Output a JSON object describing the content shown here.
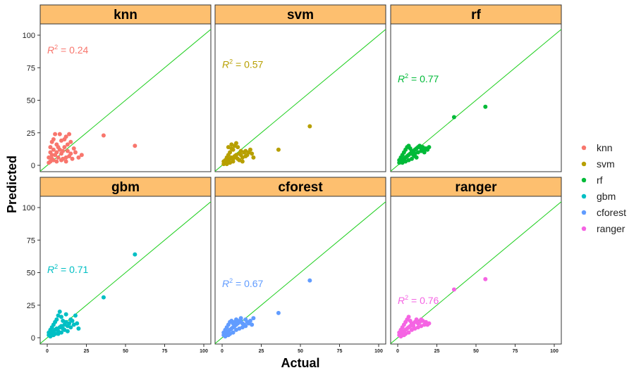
{
  "chart_data": {
    "type": "scatter",
    "xlabel": "Actual",
    "ylabel": "Predicted",
    "xlim": [
      0,
      100
    ],
    "ylim": [
      0,
      100
    ],
    "x_ticks": [
      0,
      25,
      50,
      75,
      100
    ],
    "y_ticks": [
      0,
      25,
      50,
      75,
      100
    ],
    "reference_line": "y = x",
    "reference_line_color": "#1fcf1f",
    "strip_fill": "#fdbf6f",
    "legend_position": "right",
    "legend": [
      "knn",
      "svm",
      "rf",
      "gbm",
      "cforest",
      "ranger"
    ],
    "panels": [
      {
        "name": "knn",
        "color": "#F8766D",
        "r2_label": "R",
        "r2_sup": "2",
        "r2_value": "= 0.24",
        "r2_at": [
          0,
          88
        ],
        "points": [
          [
            1,
            2
          ],
          [
            2,
            3
          ],
          [
            3,
            5
          ],
          [
            4,
            4
          ],
          [
            5,
            8
          ],
          [
            6,
            10
          ],
          [
            7,
            6
          ],
          [
            8,
            12
          ],
          [
            9,
            9
          ],
          [
            10,
            5
          ],
          [
            11,
            14
          ],
          [
            12,
            6
          ],
          [
            13,
            11
          ],
          [
            14,
            7
          ],
          [
            15,
            9
          ],
          [
            16,
            5
          ],
          [
            17,
            13
          ],
          [
            18,
            10
          ],
          [
            20,
            6
          ],
          [
            2,
            14
          ],
          [
            3,
            18
          ],
          [
            4,
            20
          ],
          [
            5,
            24
          ],
          [
            6,
            16
          ],
          [
            8,
            24
          ],
          [
            9,
            19
          ],
          [
            11,
            20
          ],
          [
            12,
            22
          ],
          [
            14,
            24
          ],
          [
            15,
            18
          ],
          [
            1,
            6
          ],
          [
            2,
            10
          ],
          [
            3,
            8
          ],
          [
            4,
            12
          ],
          [
            6,
            3
          ],
          [
            7,
            14
          ],
          [
            9,
            4
          ],
          [
            10,
            11
          ],
          [
            12,
            3
          ],
          [
            13,
            16
          ],
          [
            22,
            8
          ],
          [
            36,
            23
          ],
          [
            56,
            15
          ]
        ]
      },
      {
        "name": "svm",
        "color": "#B79F00",
        "r2_label": "R",
        "r2_sup": "2",
        "r2_value": "= 0.57",
        "r2_at": [
          0,
          77
        ],
        "points": [
          [
            1,
            1
          ],
          [
            2,
            2
          ],
          [
            3,
            3
          ],
          [
            4,
            4
          ],
          [
            5,
            5
          ],
          [
            6,
            6
          ],
          [
            7,
            3
          ],
          [
            8,
            7
          ],
          [
            9,
            8
          ],
          [
            10,
            5
          ],
          [
            11,
            9
          ],
          [
            12,
            8
          ],
          [
            13,
            6
          ],
          [
            14,
            10
          ],
          [
            15,
            11
          ],
          [
            16,
            8
          ],
          [
            18,
            12
          ],
          [
            20,
            6
          ],
          [
            2,
            4
          ],
          [
            3,
            6
          ],
          [
            4,
            8
          ],
          [
            5,
            10
          ],
          [
            6,
            13
          ],
          [
            7,
            12
          ],
          [
            8,
            15
          ],
          [
            9,
            17
          ],
          [
            10,
            14
          ],
          [
            12,
            11
          ],
          [
            4,
            14
          ],
          [
            6,
            16
          ],
          [
            1,
            3
          ],
          [
            3,
            1
          ],
          [
            5,
            2
          ],
          [
            7,
            5
          ],
          [
            9,
            6
          ],
          [
            11,
            4
          ],
          [
            13,
            3
          ],
          [
            15,
            7
          ],
          [
            17,
            10
          ],
          [
            19,
            9
          ],
          [
            36,
            12
          ],
          [
            56,
            30
          ]
        ]
      },
      {
        "name": "rf",
        "color": "#00BA38",
        "r2_label": "R",
        "r2_sup": "2",
        "r2_value": "= 0.77",
        "r2_at": [
          0,
          66
        ],
        "points": [
          [
            1,
            2
          ],
          [
            2,
            3
          ],
          [
            3,
            4
          ],
          [
            4,
            5
          ],
          [
            5,
            6
          ],
          [
            6,
            7
          ],
          [
            7,
            8
          ],
          [
            8,
            9
          ],
          [
            9,
            10
          ],
          [
            10,
            11
          ],
          [
            11,
            12
          ],
          [
            12,
            13
          ],
          [
            13,
            14
          ],
          [
            14,
            15
          ],
          [
            15,
            13
          ],
          [
            16,
            14
          ],
          [
            17,
            12
          ],
          [
            18,
            13
          ],
          [
            20,
            14
          ],
          [
            2,
            6
          ],
          [
            3,
            8
          ],
          [
            4,
            10
          ],
          [
            5,
            12
          ],
          [
            6,
            14
          ],
          [
            7,
            15
          ],
          [
            8,
            13
          ],
          [
            9,
            11
          ],
          [
            10,
            8
          ],
          [
            11,
            7
          ],
          [
            12,
            6
          ],
          [
            1,
            4
          ],
          [
            3,
            2
          ],
          [
            5,
            3
          ],
          [
            7,
            4
          ],
          [
            9,
            5
          ],
          [
            11,
            9
          ],
          [
            13,
            10
          ],
          [
            15,
            11
          ],
          [
            17,
            10
          ],
          [
            19,
            12
          ],
          [
            36,
            37
          ],
          [
            56,
            45
          ]
        ]
      },
      {
        "name": "gbm",
        "color": "#00BFC4",
        "r2_label": "R",
        "r2_sup": "2",
        "r2_value": "= 0.71",
        "r2_at": [
          0,
          52
        ],
        "points": [
          [
            1,
            2
          ],
          [
            2,
            3
          ],
          [
            3,
            4
          ],
          [
            4,
            5
          ],
          [
            5,
            6
          ],
          [
            6,
            7
          ],
          [
            7,
            5
          ],
          [
            8,
            8
          ],
          [
            9,
            9
          ],
          [
            10,
            7
          ],
          [
            11,
            10
          ],
          [
            12,
            12
          ],
          [
            13,
            9
          ],
          [
            14,
            11
          ],
          [
            15,
            8
          ],
          [
            16,
            13
          ],
          [
            18,
            17
          ],
          [
            20,
            7
          ],
          [
            2,
            6
          ],
          [
            3,
            8
          ],
          [
            4,
            10
          ],
          [
            5,
            12
          ],
          [
            6,
            14
          ],
          [
            7,
            17
          ],
          [
            8,
            20
          ],
          [
            9,
            16
          ],
          [
            10,
            13
          ],
          [
            12,
            18
          ],
          [
            1,
            4
          ],
          [
            3,
            2
          ],
          [
            5,
            3
          ],
          [
            7,
            3
          ],
          [
            9,
            4
          ],
          [
            11,
            6
          ],
          [
            13,
            5
          ],
          [
            15,
            14
          ],
          [
            17,
            10
          ],
          [
            19,
            11
          ],
          [
            2,
            1
          ],
          [
            4,
            2
          ],
          [
            36,
            31
          ],
          [
            56,
            64
          ]
        ]
      },
      {
        "name": "cforest",
        "color": "#619CFF",
        "r2_label": "R",
        "r2_sup": "2",
        "r2_value": "= 0.67",
        "r2_at": [
          0,
          41
        ],
        "points": [
          [
            1,
            2
          ],
          [
            2,
            3
          ],
          [
            3,
            4
          ],
          [
            4,
            5
          ],
          [
            5,
            6
          ],
          [
            6,
            7
          ],
          [
            7,
            8
          ],
          [
            8,
            9
          ],
          [
            9,
            10
          ],
          [
            10,
            11
          ],
          [
            11,
            12
          ],
          [
            12,
            13
          ],
          [
            13,
            11
          ],
          [
            14,
            10
          ],
          [
            15,
            14
          ],
          [
            16,
            12
          ],
          [
            18,
            13
          ],
          [
            20,
            15
          ],
          [
            2,
            6
          ],
          [
            3,
            8
          ],
          [
            4,
            10
          ],
          [
            5,
            12
          ],
          [
            6,
            13
          ],
          [
            7,
            11
          ],
          [
            8,
            12
          ],
          [
            9,
            14
          ],
          [
            10,
            13
          ],
          [
            12,
            15
          ],
          [
            1,
            4
          ],
          [
            3,
            2
          ],
          [
            5,
            3
          ],
          [
            7,
            4
          ],
          [
            9,
            6
          ],
          [
            11,
            7
          ],
          [
            13,
            8
          ],
          [
            15,
            9
          ],
          [
            17,
            11
          ],
          [
            19,
            10
          ],
          [
            2,
            1
          ],
          [
            4,
            2
          ],
          [
            36,
            19
          ],
          [
            56,
            44
          ]
        ]
      },
      {
        "name": "ranger",
        "color": "#F564E3",
        "r2_label": "R",
        "r2_sup": "2",
        "r2_value": "= 0.76",
        "r2_at": [
          0,
          28
        ],
        "points": [
          [
            1,
            2
          ],
          [
            2,
            3
          ],
          [
            3,
            4
          ],
          [
            4,
            5
          ],
          [
            5,
            6
          ],
          [
            6,
            7
          ],
          [
            7,
            8
          ],
          [
            8,
            9
          ],
          [
            9,
            10
          ],
          [
            10,
            11
          ],
          [
            11,
            12
          ],
          [
            12,
            13
          ],
          [
            13,
            11
          ],
          [
            14,
            12
          ],
          [
            15,
            14
          ],
          [
            16,
            13
          ],
          [
            18,
            12
          ],
          [
            20,
            11
          ],
          [
            2,
            6
          ],
          [
            3,
            8
          ],
          [
            4,
            10
          ],
          [
            5,
            12
          ],
          [
            6,
            14
          ],
          [
            7,
            16
          ],
          [
            8,
            13
          ],
          [
            9,
            11
          ],
          [
            10,
            9
          ],
          [
            12,
            14
          ],
          [
            1,
            4
          ],
          [
            3,
            2
          ],
          [
            5,
            3
          ],
          [
            7,
            4
          ],
          [
            9,
            6
          ],
          [
            11,
            7
          ],
          [
            13,
            8
          ],
          [
            15,
            9
          ],
          [
            17,
            10
          ],
          [
            19,
            10
          ],
          [
            2,
            1
          ],
          [
            4,
            2
          ],
          [
            36,
            37
          ],
          [
            56,
            45
          ]
        ]
      }
    ]
  }
}
